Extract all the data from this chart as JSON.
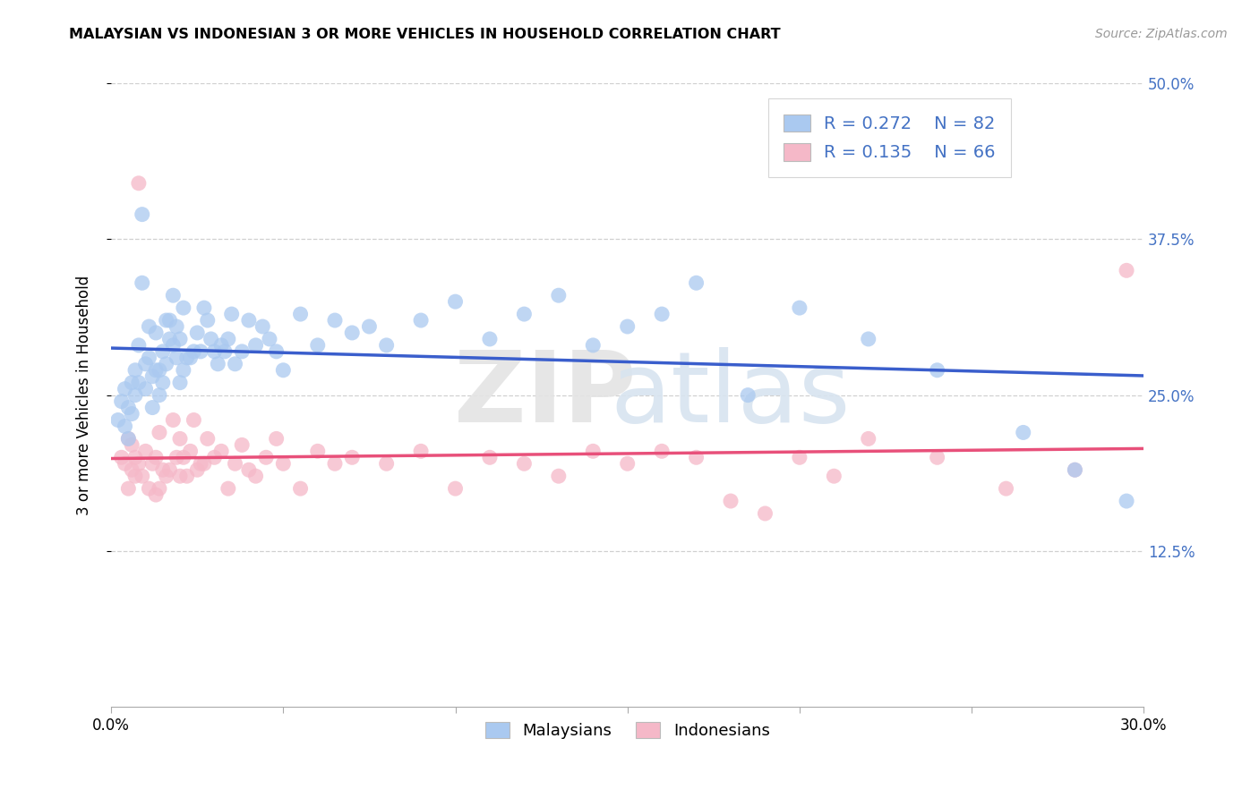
{
  "title": "MALAYSIAN VS INDONESIAN 3 OR MORE VEHICLES IN HOUSEHOLD CORRELATION CHART",
  "source": "Source: ZipAtlas.com",
  "ylabel": "3 or more Vehicles in Household",
  "xmin": 0.0,
  "xmax": 0.3,
  "ymin": 0.0,
  "ymax": 0.5,
  "yticks": [
    0.125,
    0.25,
    0.375,
    0.5
  ],
  "ytick_labels": [
    "12.5%",
    "25.0%",
    "37.5%",
    "50.0%"
  ],
  "malaysian_color": "#aac9f0",
  "indonesian_color": "#f5b8c8",
  "trend_malaysian_color": "#3a5ecc",
  "trend_indonesian_color": "#e8507a",
  "malaysian_x": [
    0.002,
    0.003,
    0.004,
    0.004,
    0.005,
    0.005,
    0.006,
    0.006,
    0.007,
    0.007,
    0.008,
    0.008,
    0.009,
    0.009,
    0.01,
    0.01,
    0.011,
    0.011,
    0.012,
    0.012,
    0.013,
    0.013,
    0.014,
    0.014,
    0.015,
    0.015,
    0.016,
    0.016,
    0.017,
    0.017,
    0.018,
    0.018,
    0.019,
    0.019,
    0.02,
    0.02,
    0.021,
    0.021,
    0.022,
    0.023,
    0.024,
    0.025,
    0.026,
    0.027,
    0.028,
    0.029,
    0.03,
    0.031,
    0.032,
    0.033,
    0.034,
    0.035,
    0.036,
    0.038,
    0.04,
    0.042,
    0.044,
    0.046,
    0.048,
    0.05,
    0.055,
    0.06,
    0.065,
    0.07,
    0.075,
    0.08,
    0.09,
    0.1,
    0.11,
    0.12,
    0.13,
    0.14,
    0.15,
    0.16,
    0.17,
    0.185,
    0.2,
    0.22,
    0.24,
    0.265,
    0.28,
    0.295
  ],
  "malaysian_y": [
    0.23,
    0.245,
    0.225,
    0.255,
    0.215,
    0.24,
    0.235,
    0.26,
    0.25,
    0.27,
    0.26,
    0.29,
    0.34,
    0.395,
    0.255,
    0.275,
    0.28,
    0.305,
    0.24,
    0.265,
    0.27,
    0.3,
    0.27,
    0.25,
    0.26,
    0.285,
    0.31,
    0.275,
    0.295,
    0.31,
    0.29,
    0.33,
    0.28,
    0.305,
    0.26,
    0.295,
    0.27,
    0.32,
    0.28,
    0.28,
    0.285,
    0.3,
    0.285,
    0.32,
    0.31,
    0.295,
    0.285,
    0.275,
    0.29,
    0.285,
    0.295,
    0.315,
    0.275,
    0.285,
    0.31,
    0.29,
    0.305,
    0.295,
    0.285,
    0.27,
    0.315,
    0.29,
    0.31,
    0.3,
    0.305,
    0.29,
    0.31,
    0.325,
    0.295,
    0.315,
    0.33,
    0.29,
    0.305,
    0.315,
    0.34,
    0.25,
    0.32,
    0.295,
    0.27,
    0.22,
    0.19,
    0.165
  ],
  "indonesian_x": [
    0.003,
    0.004,
    0.005,
    0.005,
    0.006,
    0.006,
    0.007,
    0.007,
    0.008,
    0.008,
    0.009,
    0.01,
    0.011,
    0.012,
    0.013,
    0.013,
    0.014,
    0.014,
    0.015,
    0.016,
    0.017,
    0.018,
    0.019,
    0.02,
    0.02,
    0.021,
    0.022,
    0.023,
    0.024,
    0.025,
    0.026,
    0.027,
    0.028,
    0.03,
    0.032,
    0.034,
    0.036,
    0.038,
    0.04,
    0.042,
    0.045,
    0.048,
    0.05,
    0.055,
    0.06,
    0.065,
    0.07,
    0.08,
    0.09,
    0.1,
    0.11,
    0.12,
    0.13,
    0.14,
    0.15,
    0.16,
    0.17,
    0.18,
    0.19,
    0.2,
    0.21,
    0.22,
    0.24,
    0.26,
    0.28,
    0.295
  ],
  "indonesian_y": [
    0.2,
    0.195,
    0.175,
    0.215,
    0.19,
    0.21,
    0.185,
    0.2,
    0.42,
    0.195,
    0.185,
    0.205,
    0.175,
    0.195,
    0.17,
    0.2,
    0.175,
    0.22,
    0.19,
    0.185,
    0.19,
    0.23,
    0.2,
    0.215,
    0.185,
    0.2,
    0.185,
    0.205,
    0.23,
    0.19,
    0.195,
    0.195,
    0.215,
    0.2,
    0.205,
    0.175,
    0.195,
    0.21,
    0.19,
    0.185,
    0.2,
    0.215,
    0.195,
    0.175,
    0.205,
    0.195,
    0.2,
    0.195,
    0.205,
    0.175,
    0.2,
    0.195,
    0.185,
    0.205,
    0.195,
    0.205,
    0.2,
    0.165,
    0.155,
    0.2,
    0.185,
    0.215,
    0.2,
    0.175,
    0.19,
    0.35
  ]
}
